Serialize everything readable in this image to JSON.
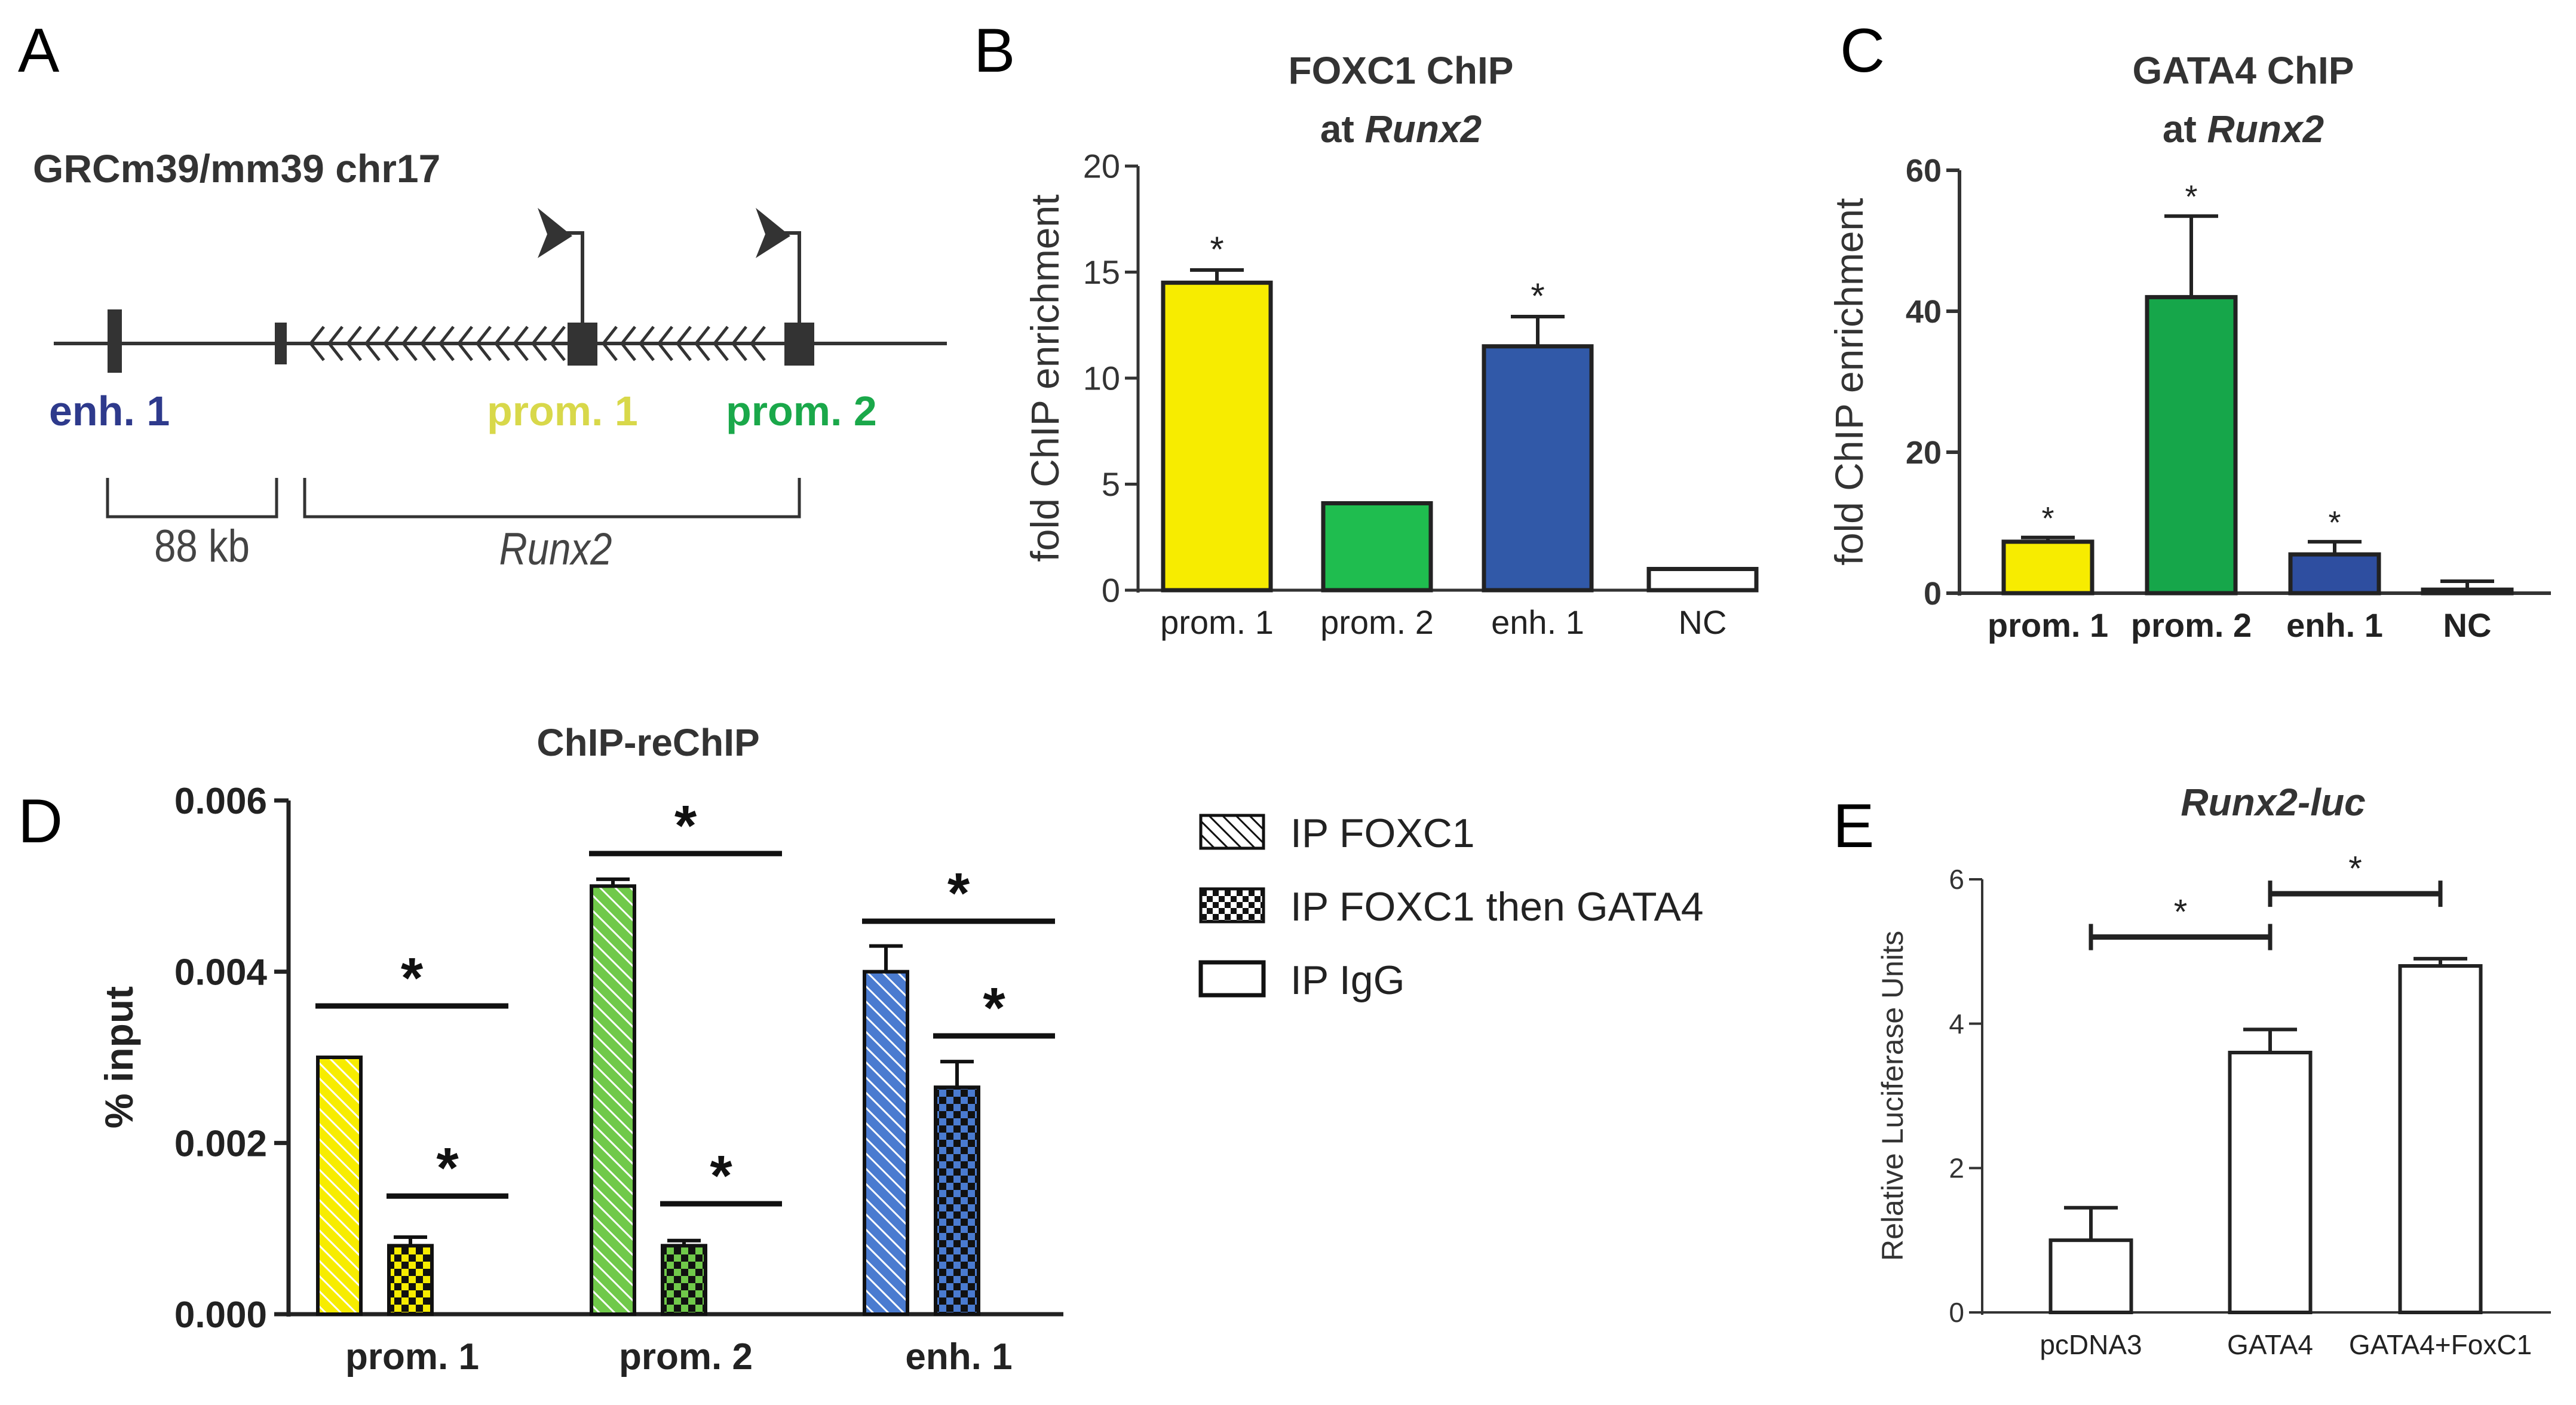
{
  "panels": {
    "A": {
      "letter": "A",
      "locus_label": "GRCm39/mm39 chr17",
      "enh_label": "enh. 1",
      "prom1_label": "prom. 1",
      "prom2_label": "prom. 2",
      "scale_label": "88 kb",
      "gene_label": "Runx2",
      "colors": {
        "enh": "#2e3a8c",
        "prom1": "#d8d84a",
        "prom2": "#1aa84a"
      }
    },
    "B": {
      "letter": "B",
      "title_line1": "FOXC1 ChIP",
      "title_line2_prefix": "at ",
      "title_line2_gene": "Runx2"
    },
    "C": {
      "letter": "C",
      "title_line1": "GATA4 ChIP",
      "title_line2_prefix": "at ",
      "title_line2_gene": "Runx2"
    },
    "D": {
      "letter": "D",
      "title": "ChIP-reChIP",
      "legend": [
        {
          "label": "IP FOXC1",
          "pattern": "hatch"
        },
        {
          "label": "IP FOXC1 then GATA4",
          "pattern": "checker"
        },
        {
          "label": "IP IgG",
          "pattern": "none"
        }
      ]
    },
    "E": {
      "letter": "E",
      "title": "Runx2-luc"
    }
  },
  "chart_data": [
    {
      "panel": "B",
      "type": "bar",
      "title": "FOXC1 ChIP at Runx2",
      "ylabel": "fold ChIP enrichment",
      "ylim": [
        0,
        20
      ],
      "yticks": [
        0,
        5,
        10,
        15,
        20
      ],
      "categories": [
        "prom. 1",
        "prom. 2",
        "enh. 1",
        "NC"
      ],
      "values": [
        14.5,
        4.1,
        11.5,
        1.0
      ],
      "errors": [
        0.6,
        0,
        1.4,
        0
      ],
      "colors": [
        "#f7ec00",
        "#1fbd4f",
        "#3159a8",
        "#ffffff"
      ],
      "significance": [
        "*",
        "",
        "*",
        ""
      ]
    },
    {
      "panel": "C",
      "type": "bar",
      "title": "GATA4 ChIP at Runx2",
      "ylabel": "fold ChIP enrichment",
      "ylim": [
        0,
        60
      ],
      "yticks": [
        0,
        20,
        40,
        60
      ],
      "categories": [
        "prom. 1",
        "prom. 2",
        "enh. 1",
        "NC"
      ],
      "values": [
        7.3,
        42.0,
        5.5,
        0.5
      ],
      "errors": [
        0.6,
        11.5,
        1.8,
        1.2
      ],
      "colors": [
        "#f7ec00",
        "#16a64a",
        "#2e4ea0",
        "#ffffff"
      ],
      "significance": [
        "*",
        "*",
        "*",
        ""
      ]
    },
    {
      "panel": "D",
      "type": "bar",
      "title": "ChIP-reChIP",
      "ylabel": "% input",
      "ylim": [
        0,
        0.006
      ],
      "yticks": [
        "0.000",
        "0.002",
        "0.004",
        "0.006"
      ],
      "categories": [
        "prom. 1",
        "prom. 2",
        "enh. 1"
      ],
      "category_colors": [
        "#f7ec00",
        "#70c94a",
        "#4a7bd0"
      ],
      "series": [
        {
          "name": "IP FOXC1",
          "values": [
            0.003,
            0.005,
            0.004
          ],
          "errors": [
            0,
            8e-05,
            0.0003
          ]
        },
        {
          "name": "IP FOXC1 then GATA4",
          "values": [
            0.0008,
            0.0008,
            0.00265
          ],
          "errors": [
            0.0001,
            6e-05,
            0.0003
          ]
        },
        {
          "name": "IP IgG",
          "values": [
            0,
            0,
            0
          ],
          "errors": [
            0,
            0,
            0
          ]
        }
      ],
      "significance": [
        {
          "category": 0,
          "from": 0,
          "to": 2,
          "y": 0.0036,
          "label": "*"
        },
        {
          "category": 0,
          "from": 1,
          "to": 2,
          "y": 0.00138,
          "label": "*"
        },
        {
          "category": 1,
          "from": 0,
          "to": 2,
          "y": 0.00538,
          "label": "*"
        },
        {
          "category": 1,
          "from": 1,
          "to": 2,
          "y": 0.00129,
          "label": "*"
        },
        {
          "category": 2,
          "from": 0,
          "to": 2,
          "y": 0.00459,
          "label": "*"
        },
        {
          "category": 2,
          "from": 1,
          "to": 2,
          "y": 0.00325,
          "label": "*"
        }
      ]
    },
    {
      "panel": "E",
      "type": "bar",
      "title": "Runx2-luc",
      "ylabel": "Relative Luciferase Units",
      "ylim": [
        0,
        6
      ],
      "yticks": [
        0,
        2,
        4,
        6
      ],
      "categories": [
        "pcDNA3",
        "GATA4",
        "GATA4+FoxC1"
      ],
      "values": [
        1.0,
        3.6,
        4.8
      ],
      "errors": [
        0.45,
        0.32,
        0.1
      ],
      "colors": [
        "#ffffff",
        "#ffffff",
        "#ffffff"
      ],
      "comparisons": [
        {
          "from": 0,
          "to": 1,
          "y": 5.2,
          "label": "*"
        },
        {
          "from": 1,
          "to": 2,
          "y": 5.8,
          "label": "*"
        }
      ]
    }
  ]
}
